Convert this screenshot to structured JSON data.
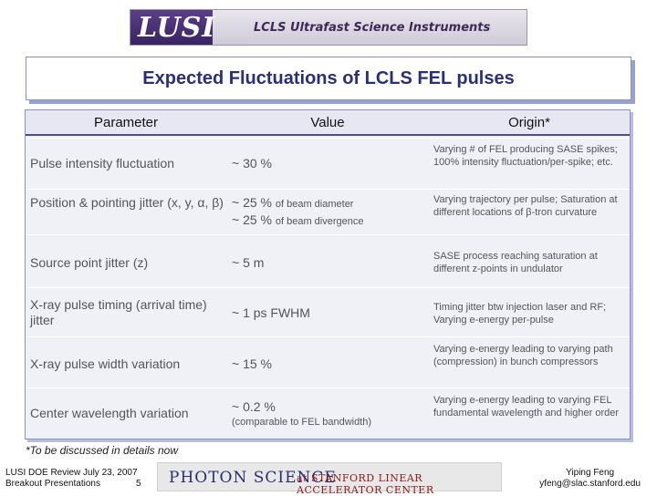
{
  "banner": {
    "logo": "LUSI",
    "subtitle": "LCLS Ultrafast Science Instruments"
  },
  "title": "Expected Fluctuations of LCLS FEL pulses",
  "table": {
    "headers": [
      "Parameter",
      "Value",
      "Origin*"
    ],
    "rows": [
      {
        "parameter": "Pulse intensity fluctuation",
        "value": "~ 30 %",
        "origin": "Varying # of FEL producing SASE spikes; 100% intensity fluctuation/per-spike; etc."
      },
      {
        "parameter": "Position & pointing jitter (x, y, α, β)",
        "value_line1_main": "~ 25 %",
        "value_line1_small": "of beam diameter",
        "value_line2_main": "~ 25 %",
        "value_line2_small": "of beam divergence",
        "origin": "Varying trajectory per pulse; Saturation at different locations of β-tron curvature"
      },
      {
        "parameter": "Source point jitter (z)",
        "value": "~ 5 m",
        "origin": "SASE process reaching saturation at different z-points in undulator"
      },
      {
        "parameter": "X-ray pulse timing (arrival time) jitter",
        "value": "~ 1 ps FWHM",
        "origin": "Timing jitter btw injection laser and RF; Varying e-energy per-pulse"
      },
      {
        "parameter": "X-ray pulse width variation",
        "value": "~ 15 %",
        "origin": "Varying e-energy leading to varying path (compression) in bunch compressors"
      },
      {
        "parameter": "Center wavelength variation",
        "value_line1_main": "~ 0.2 %",
        "value_line2_small": "(comparable to FEL bandwidth)",
        "origin": "Varying e-energy leading to varying FEL fundamental wavelength and higher order"
      }
    ]
  },
  "footnote": "*To be discussed in details now",
  "footer": {
    "left_line1": "LUSI DOE Review July 23, 2007",
    "left_line2": "Breakout Presentations",
    "page": "5",
    "photon_brand": "PHOTON SCIENCE",
    "photon_suffix": "at STANFORD LINEAR ACCELERATOR CENTER",
    "right_line1": "Yiping Feng",
    "right_line2": "yfeng@slac.stanford.edu"
  }
}
